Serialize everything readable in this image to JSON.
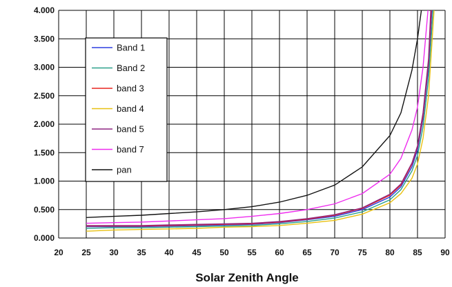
{
  "chart_data": {
    "type": "line",
    "title": "",
    "xlabel": "Solar Zenith Angle",
    "ylabel": "",
    "xlim": [
      20,
      90
    ],
    "ylim": [
      0,
      4
    ],
    "x_ticks": [
      "20",
      "25",
      "30",
      "35",
      "40",
      "45",
      "50",
      "55",
      "60",
      "65",
      "70",
      "75",
      "80",
      "85",
      "90"
    ],
    "y_ticks": [
      "0.000",
      "0.500",
      "1.000",
      "1.500",
      "2.000",
      "2.500",
      "3.000",
      "3.500",
      "4.000"
    ],
    "grid": true,
    "legend_position": "upper-left",
    "series": [
      {
        "name": "Band 1",
        "color": "#2b3fe0",
        "points": [
          [
            25,
            0.2
          ],
          [
            30,
            0.2
          ],
          [
            35,
            0.2
          ],
          [
            40,
            0.21
          ],
          [
            45,
            0.22
          ],
          [
            50,
            0.23
          ],
          [
            55,
            0.24
          ],
          [
            60,
            0.27
          ],
          [
            65,
            0.32
          ],
          [
            70,
            0.38
          ],
          [
            75,
            0.5
          ],
          [
            80,
            0.72
          ],
          [
            82,
            0.9
          ],
          [
            84,
            1.25
          ],
          [
            85,
            1.55
          ],
          [
            86,
            2.1
          ],
          [
            87,
            3.0
          ],
          [
            87.6,
            4.0
          ]
        ]
      },
      {
        "name": "Band 2",
        "color": "#2aa08a",
        "points": [
          [
            25,
            0.17
          ],
          [
            30,
            0.18
          ],
          [
            35,
            0.18
          ],
          [
            40,
            0.19
          ],
          [
            45,
            0.2
          ],
          [
            50,
            0.21
          ],
          [
            55,
            0.22
          ],
          [
            60,
            0.25
          ],
          [
            65,
            0.29
          ],
          [
            70,
            0.35
          ],
          [
            75,
            0.46
          ],
          [
            80,
            0.67
          ],
          [
            82,
            0.85
          ],
          [
            84,
            1.18
          ],
          [
            85,
            1.45
          ],
          [
            86,
            1.95
          ],
          [
            87,
            2.8
          ],
          [
            87.8,
            4.0
          ]
        ]
      },
      {
        "name": "band 3",
        "color": "#e8231f",
        "points": [
          [
            25,
            0.21
          ],
          [
            30,
            0.21
          ],
          [
            35,
            0.21
          ],
          [
            40,
            0.22
          ],
          [
            45,
            0.23
          ],
          [
            50,
            0.24
          ],
          [
            55,
            0.25
          ],
          [
            60,
            0.28
          ],
          [
            65,
            0.33
          ],
          [
            70,
            0.4
          ],
          [
            75,
            0.52
          ],
          [
            80,
            0.75
          ],
          [
            82,
            0.93
          ],
          [
            84,
            1.3
          ],
          [
            85,
            1.6
          ],
          [
            86,
            2.15
          ],
          [
            87,
            3.1
          ],
          [
            87.5,
            4.0
          ]
        ]
      },
      {
        "name": "band 4",
        "color": "#e8c010",
        "points": [
          [
            25,
            0.12
          ],
          [
            30,
            0.14
          ],
          [
            35,
            0.15
          ],
          [
            40,
            0.16
          ],
          [
            45,
            0.17
          ],
          [
            50,
            0.19
          ],
          [
            55,
            0.2
          ],
          [
            60,
            0.22
          ],
          [
            65,
            0.26
          ],
          [
            70,
            0.31
          ],
          [
            75,
            0.42
          ],
          [
            80,
            0.62
          ],
          [
            82,
            0.78
          ],
          [
            84,
            1.05
          ],
          [
            85,
            1.3
          ],
          [
            86,
            1.75
          ],
          [
            87,
            2.5
          ],
          [
            88,
            4.0
          ]
        ]
      },
      {
        "name": "band 5",
        "color": "#8e2580",
        "points": [
          [
            25,
            0.22
          ],
          [
            30,
            0.22
          ],
          [
            35,
            0.22
          ],
          [
            40,
            0.23
          ],
          [
            45,
            0.24
          ],
          [
            50,
            0.25
          ],
          [
            55,
            0.26
          ],
          [
            60,
            0.29
          ],
          [
            65,
            0.34
          ],
          [
            70,
            0.41
          ],
          [
            75,
            0.53
          ],
          [
            80,
            0.77
          ],
          [
            82,
            0.95
          ],
          [
            84,
            1.32
          ],
          [
            85,
            1.62
          ],
          [
            86,
            2.2
          ],
          [
            87,
            3.15
          ],
          [
            87.4,
            4.0
          ]
        ]
      },
      {
        "name": "band 7",
        "color": "#ee2bee",
        "points": [
          [
            25,
            0.26
          ],
          [
            30,
            0.27
          ],
          [
            35,
            0.28
          ],
          [
            40,
            0.3
          ],
          [
            45,
            0.32
          ],
          [
            50,
            0.34
          ],
          [
            55,
            0.38
          ],
          [
            60,
            0.43
          ],
          [
            65,
            0.5
          ],
          [
            70,
            0.6
          ],
          [
            75,
            0.78
          ],
          [
            80,
            1.12
          ],
          [
            82,
            1.4
          ],
          [
            84,
            1.9
          ],
          [
            85,
            2.3
          ],
          [
            86,
            3.0
          ],
          [
            86.9,
            4.0
          ]
        ]
      },
      {
        "name": "pan",
        "color": "#111111",
        "points": [
          [
            25,
            0.36
          ],
          [
            30,
            0.38
          ],
          [
            35,
            0.4
          ],
          [
            40,
            0.43
          ],
          [
            45,
            0.46
          ],
          [
            50,
            0.5
          ],
          [
            55,
            0.55
          ],
          [
            60,
            0.63
          ],
          [
            65,
            0.75
          ],
          [
            70,
            0.93
          ],
          [
            75,
            1.25
          ],
          [
            80,
            1.8
          ],
          [
            82,
            2.2
          ],
          [
            84,
            2.95
          ],
          [
            85,
            3.5
          ],
          [
            85.7,
            4.0
          ]
        ]
      }
    ]
  }
}
